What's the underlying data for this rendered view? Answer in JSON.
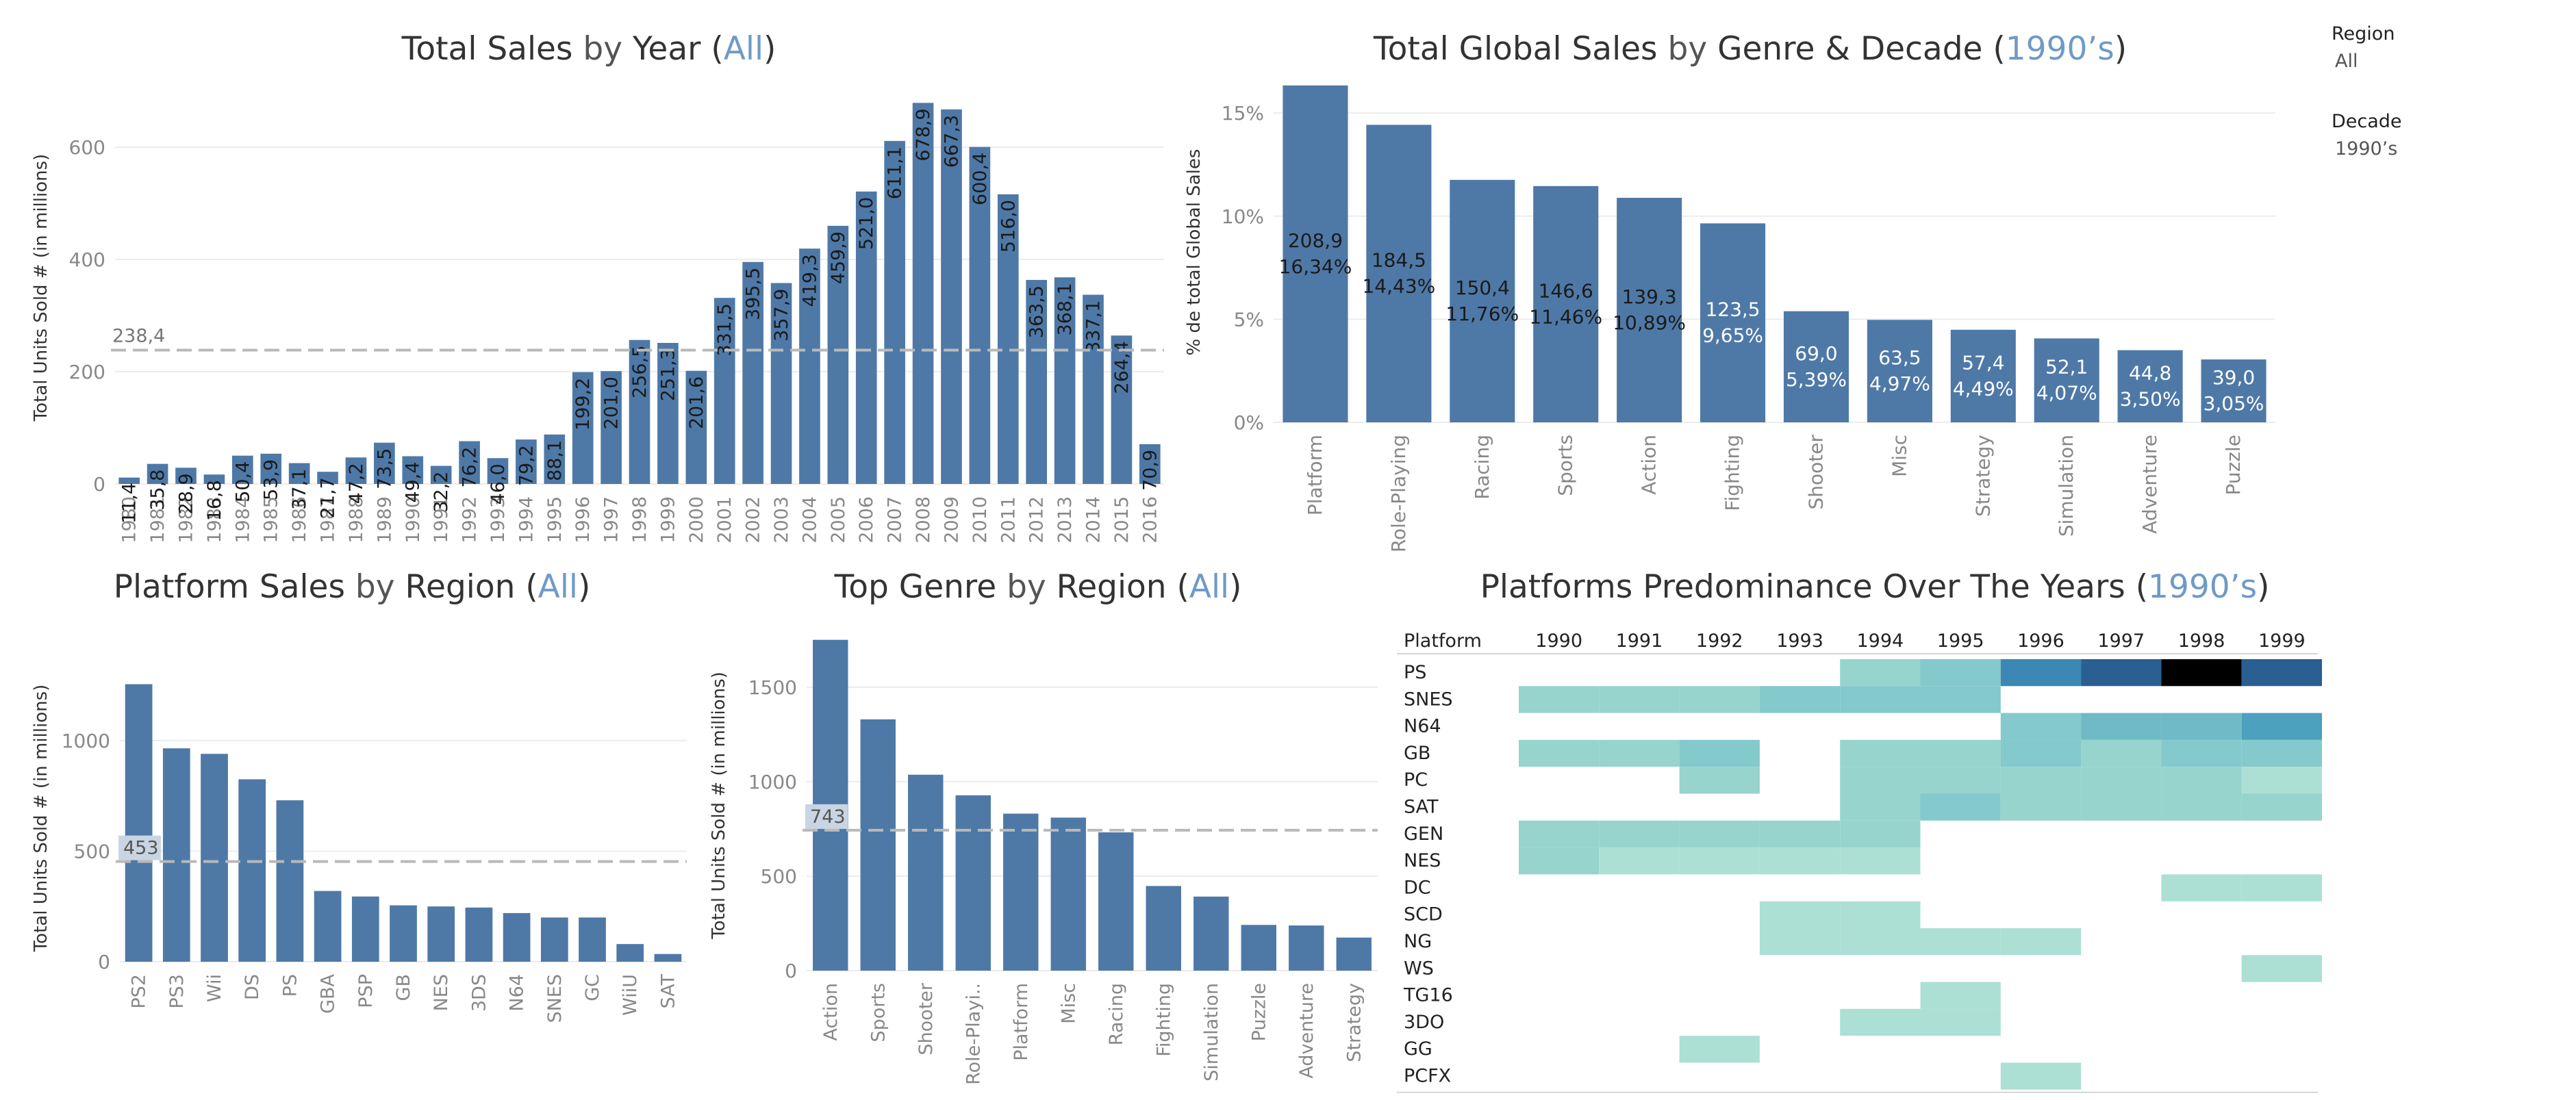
{
  "colors": {
    "bar": "#4e79a7",
    "grid": "#ececec",
    "ref": "#b9b9b9",
    "axis_text": "#888888",
    "highlight": "#6f9ac7"
  },
  "filters": {
    "region_label": "Region",
    "region_value": "All",
    "decade_label": "Decade",
    "decade_value": "1990’s"
  },
  "titles": {
    "sales_year": {
      "m1": "Total Sales",
      "c1": " by ",
      "m2": "Year",
      "p1": " (",
      "sel": "All",
      "p2": ")"
    },
    "genre_decade": {
      "m1": "Total Global Sales",
      "c1": " by ",
      "m2": "Genre",
      "c2": " & ",
      "m3": "Decade",
      "p1": " (",
      "sel": "1990’s",
      "p2": ")"
    },
    "platform_region": {
      "m1": "Platform Sales",
      "c1": " by ",
      "m2": "Region",
      "p1": " (",
      "sel": "All",
      "p2": ")"
    },
    "genre_region": {
      "m1": "Top Genre",
      "c1": " by ",
      "m2": "Region",
      "p1": " (",
      "sel": "All",
      "p2": ")"
    },
    "heatmap": {
      "m1": "Platforms Predominance Over The Years",
      "p1": " (",
      "sel": "1990’s",
      "p2": ")"
    }
  },
  "chart_data": [
    {
      "id": "sales_by_year",
      "type": "bar",
      "ylabel": "Total Units Sold # (in millions)",
      "ylim": [
        0,
        700
      ],
      "yticks": [
        0,
        200,
        400,
        600
      ],
      "reference_line": {
        "value": 238.4,
        "label": "238,4"
      },
      "categories": [
        "1980",
        "1981",
        "1982",
        "1983",
        "1984",
        "1985",
        "1986",
        "1987",
        "1988",
        "1989",
        "1990",
        "1991",
        "1992",
        "1993",
        "1994",
        "1995",
        "1996",
        "1997",
        "1998",
        "1999",
        "2000",
        "2001",
        "2002",
        "2003",
        "2004",
        "2005",
        "2006",
        "2007",
        "2008",
        "2009",
        "2010",
        "2011",
        "2012",
        "2013",
        "2014",
        "2015",
        "2016"
      ],
      "values": [
        11.4,
        35.8,
        28.9,
        16.8,
        50.4,
        53.9,
        37.1,
        21.7,
        47.2,
        73.5,
        49.4,
        32.2,
        76.2,
        46.0,
        79.2,
        88.1,
        199.2,
        201.0,
        256.5,
        251.3,
        201.6,
        331.5,
        395.5,
        357.9,
        419.3,
        459.9,
        521.0,
        611.1,
        678.9,
        667.3,
        600.4,
        516.0,
        363.5,
        368.1,
        337.1,
        264.4,
        70.9
      ],
      "labels": [
        "11,4",
        "35,8",
        "28,9",
        "16,8",
        "50,4",
        "53,9",
        "37,1",
        "21,7",
        "47,2",
        "73,5",
        "49,4",
        "32,2",
        "76,2",
        "46,0",
        "79,2",
        "88,1",
        "199,2",
        "201,0",
        "256,5",
        "251,3",
        "201,6",
        "331,5",
        "395,5",
        "357,9",
        "419,3",
        "459,9",
        "521,0",
        "611,1",
        "678,9",
        "667,3",
        "600,4",
        "516,0",
        "363,5",
        "368,1",
        "337,1",
        "264,4",
        "70,9"
      ]
    },
    {
      "id": "genre_decade",
      "type": "bar",
      "ylabel": "% de total Global Sales",
      "ylim": [
        0,
        16.5
      ],
      "yticks": [
        0,
        5,
        10,
        15
      ],
      "ytick_labels": [
        "0%",
        "5%",
        "10%",
        "15%"
      ],
      "categories": [
        "Platform",
        "Role-Playing",
        "Racing",
        "Sports",
        "Action",
        "Fighting",
        "Shooter",
        "Misc",
        "Strategy",
        "Simulation",
        "Adventure",
        "Puzzle"
      ],
      "values": [
        16.34,
        14.43,
        11.76,
        11.46,
        10.89,
        9.65,
        5.39,
        4.97,
        4.49,
        4.07,
        3.5,
        3.05
      ],
      "value_labels": [
        "208,9",
        "184,5",
        "150,4",
        "146,6",
        "139,3",
        "123,5",
        "69,0",
        "63,5",
        "57,4",
        "52,1",
        "44,8",
        "39,0"
      ],
      "pct_labels": [
        "16,34%",
        "14,43%",
        "11,76%",
        "11,46%",
        "10,89%",
        "9,65%",
        "5,39%",
        "4,97%",
        "4,49%",
        "4,07%",
        "3,50%",
        "3,05%"
      ]
    },
    {
      "id": "platform_region",
      "type": "bar",
      "ylabel": "Total Units Sold # (in millions)",
      "ylim": [
        0,
        1300
      ],
      "yticks": [
        0,
        500,
        1000
      ],
      "reference_line": {
        "value": 453,
        "label": "453"
      },
      "categories": [
        "PS2",
        "PS3",
        "Wii",
        "DS",
        "PS",
        "GBA",
        "PSP",
        "GB",
        "NES",
        "3DS",
        "N64",
        "SNES",
        "GC",
        "WiiU",
        "SAT"
      ],
      "values": [
        1255,
        965,
        940,
        825,
        730,
        320,
        295,
        255,
        250,
        245,
        220,
        200,
        200,
        80,
        35
      ]
    },
    {
      "id": "genre_region",
      "type": "bar",
      "ylabel": "Total Units Sold # (in millions)",
      "ylim": [
        0,
        1750
      ],
      "yticks": [
        0,
        500,
        1000,
        1500
      ],
      "reference_line": {
        "value": 743,
        "label": "743"
      },
      "categories": [
        "Action",
        "Sports",
        "Shooter",
        "Role-Playi..",
        "Platform",
        "Misc",
        "Racing",
        "Fighting",
        "Simulation",
        "Puzzle",
        "Adventure",
        "Strategy"
      ],
      "values": [
        1751,
        1330,
        1037,
        928,
        831,
        810,
        732,
        448,
        392,
        242,
        239,
        175
      ]
    },
    {
      "id": "platform_heatmap",
      "type": "heatmap",
      "row_header": "Platform",
      "columns": [
        "1990",
        "1991",
        "1992",
        "1993",
        "1994",
        "1995",
        "1996",
        "1997",
        "1998",
        "1999"
      ],
      "rows": [
        "PS",
        "SNES",
        "N64",
        "GB",
        "PC",
        "SAT",
        "GEN",
        "NES",
        "DC",
        "SCD",
        "NG",
        "WS",
        "TG16",
        "3DO",
        "GG",
        "PCFX"
      ],
      "levels": [
        [
          null,
          null,
          null,
          null,
          2,
          3,
          6,
          8,
          9,
          8
        ],
        [
          2,
          2,
          2,
          3,
          3,
          3,
          null,
          null,
          null,
          null
        ],
        [
          null,
          null,
          null,
          null,
          null,
          null,
          3,
          4,
          4,
          5
        ],
        [
          2,
          2,
          3,
          null,
          2,
          2,
          3,
          2,
          3,
          3
        ],
        [
          null,
          null,
          2,
          null,
          2,
          2,
          2,
          2,
          2,
          1
        ],
        [
          null,
          null,
          null,
          null,
          2,
          3,
          2,
          2,
          2,
          2
        ],
        [
          2,
          2,
          2,
          2,
          2,
          null,
          null,
          null,
          null,
          null
        ],
        [
          2,
          1,
          1,
          1,
          1,
          null,
          null,
          null,
          null,
          null
        ],
        [
          null,
          null,
          null,
          null,
          null,
          null,
          null,
          null,
          1,
          1
        ],
        [
          null,
          null,
          null,
          1,
          1,
          null,
          null,
          null,
          null,
          null
        ],
        [
          null,
          null,
          null,
          1,
          1,
          1,
          1,
          null,
          null,
          null
        ],
        [
          null,
          null,
          null,
          null,
          null,
          null,
          null,
          null,
          null,
          1
        ],
        [
          null,
          null,
          null,
          null,
          null,
          1,
          null,
          null,
          null,
          null
        ],
        [
          null,
          null,
          null,
          null,
          1,
          1,
          null,
          null,
          null,
          null
        ],
        [
          null,
          null,
          1,
          null,
          null,
          null,
          null,
          null,
          null,
          null
        ],
        [
          null,
          null,
          null,
          null,
          null,
          null,
          1,
          null,
          null,
          null
        ]
      ],
      "palette": [
        "#bde5da",
        "#ace0d4",
        "#96d4cd",
        "#84c9cb",
        "#6fbac6",
        "#4ba1be",
        "#3a88b3",
        "#2e6e9f",
        "#2b5e91"
      ]
    }
  ]
}
